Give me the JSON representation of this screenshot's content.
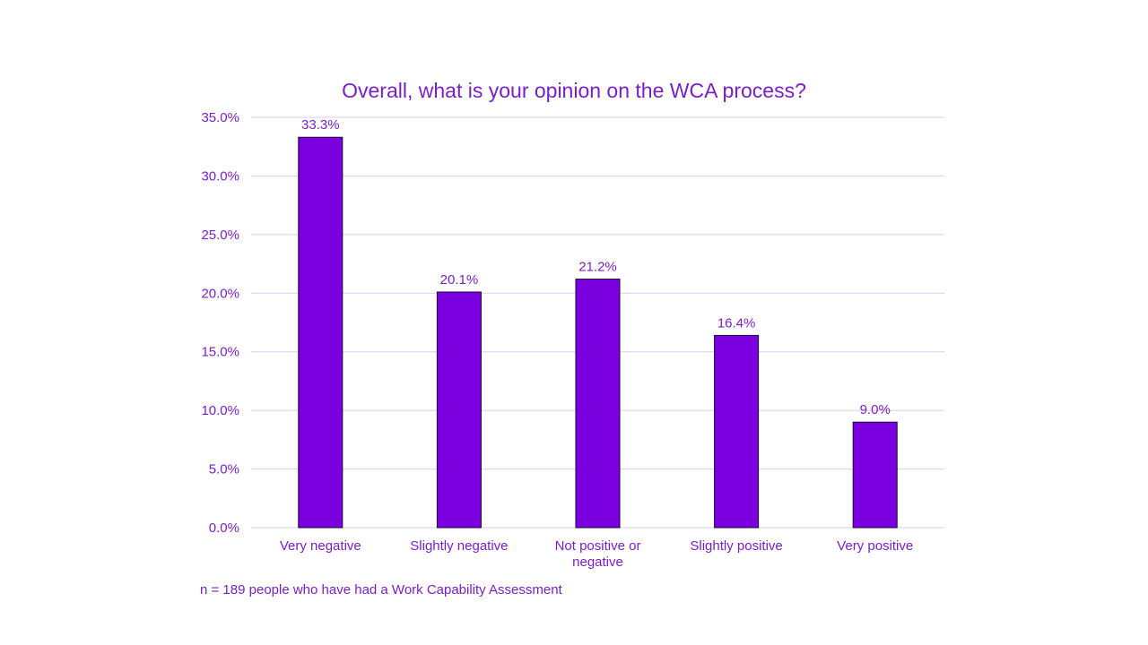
{
  "chart_data": {
    "type": "bar",
    "title": "Overall, what is your opinion on the WCA process?",
    "categories": [
      "Very negative",
      "Slightly negative",
      "Not positive or negative",
      "Slightly positive",
      "Very positive"
    ],
    "category_lines": [
      [
        "Very negative"
      ],
      [
        "Slightly negative"
      ],
      [
        "Not positive or",
        "negative"
      ],
      [
        "Slightly positive"
      ],
      [
        "Very positive"
      ]
    ],
    "values": [
      33.3,
      20.1,
      21.2,
      16.4,
      9.0
    ],
    "data_labels": [
      "33.3%",
      "20.1%",
      "21.2%",
      "16.4%",
      "9.0%"
    ],
    "ylim": [
      0,
      35
    ],
    "yticks": [
      0,
      5,
      10,
      15,
      20,
      25,
      30,
      35
    ],
    "ytick_labels": [
      "0.0%",
      "5.0%",
      "10.0%",
      "15.0%",
      "20.0%",
      "25.0%",
      "30.0%",
      "35.0%"
    ],
    "xlabel": "",
    "ylabel": "",
    "grid": true,
    "legend": "none",
    "colors": {
      "bar": "#7a00e0",
      "text": "#7a1fc8",
      "grid": "#dccbee"
    }
  },
  "footnote": "n = 189 people who have had a Work Capability Assessment"
}
